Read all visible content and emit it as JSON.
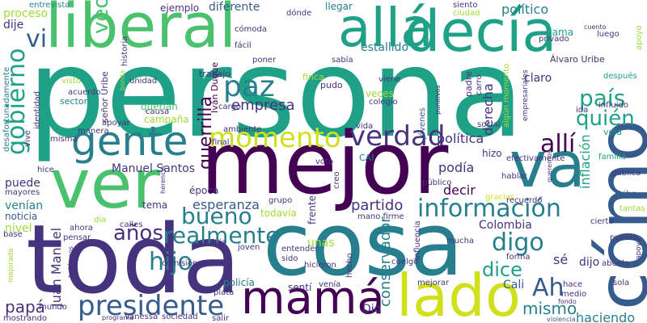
{
  "palette": {
    "purple": "#440154",
    "indigo": "#46337e",
    "blue": "#365c8d",
    "teal": "#277f8e",
    "green": "#1fa187",
    "lime": "#4ac16d",
    "yellow": "#a0da39",
    "bright": "#d0e11c"
  },
  "words": [
    {
      "text": "persona",
      "color": "#1fa187"
    },
    {
      "text": "mejor",
      "color": "#440154"
    },
    {
      "text": "cosa",
      "color": "#277f8e"
    },
    {
      "text": "toda",
      "color": "#46337e"
    },
    {
      "text": "ver",
      "color": "#4ac16d"
    },
    {
      "text": "liberal",
      "color": "#4ac16d"
    },
    {
      "text": "decía",
      "color": "#1fa187"
    },
    {
      "text": "allá",
      "color": "#1fa187"
    },
    {
      "text": "va",
      "color": "#277f8e"
    },
    {
      "text": "cómo",
      "color": "#365c8d"
    },
    {
      "text": "lado",
      "color": "#d0e11c"
    },
    {
      "text": "mamá",
      "color": "#440154"
    },
    {
      "text": "gente",
      "color": "#277f8e"
    },
    {
      "text": "presidente",
      "color": "#365c8d"
    },
    {
      "text": "momento",
      "color": "#d0e11c"
    },
    {
      "text": "verdad",
      "color": "#46337e"
    },
    {
      "text": "paz",
      "color": "#277f8e"
    },
    {
      "text": "bueno",
      "color": "#277f8e"
    },
    {
      "text": "gobierno",
      "color": "#1fa187"
    },
    {
      "text": "información",
      "color": "#277f8e"
    },
    {
      "text": "realmente",
      "color": "#277f8e"
    },
    {
      "text": "años",
      "color": "#46337e"
    },
    {
      "text": "hijo",
      "color": "#277f8e"
    },
    {
      "text": "digo",
      "color": "#277f8e"
    },
    {
      "text": "Ah",
      "color": "#365c8d"
    },
    {
      "text": "allí",
      "color": "#440154"
    },
    {
      "text": "país",
      "color": "#1fa187"
    },
    {
      "text": "quién",
      "color": "#1fa187"
    },
    {
      "text": "vi",
      "color": "#365c8d"
    },
    {
      "text": "veo",
      "color": "#4ac16d"
    },
    {
      "text": "guerrilla",
      "color": "#440154"
    },
    {
      "text": "empresa",
      "color": "#46337e"
    },
    {
      "text": "dice",
      "color": "#1fa187"
    },
    {
      "text": "mismo",
      "color": "#277f8e"
    },
    {
      "text": "papá",
      "color": "#46337e"
    },
    {
      "text": "haciendo",
      "color": "#277f8e"
    },
    {
      "text": "partido",
      "color": "#46337e"
    },
    {
      "text": "esperanza",
      "color": "#365c8d"
    },
    {
      "text": "Juan Manuel",
      "color": "#46337e"
    },
    {
      "text": "conservador",
      "color": "#277f8e"
    },
    {
      "text": "inflación",
      "color": "#1fa187"
    },
    {
      "text": "Manuel Santos",
      "color": "#46337e"
    },
    {
      "text": "política",
      "color": "#46337e"
    },
    {
      "text": "político",
      "color": "#277f8e"
    },
    {
      "text": "derecha",
      "color": "#46337e"
    },
    {
      "text": "podía",
      "color": "#46337e"
    },
    {
      "text": "decir",
      "color": "#440154"
    },
    {
      "text": "Colombia",
      "color": "#46337e"
    },
    {
      "text": "estallido",
      "color": "#277f8e"
    },
    {
      "text": "diferente",
      "color": "#365c8d"
    },
    {
      "text": "proceso",
      "color": "#a0da39"
    },
    {
      "text": "dije",
      "color": "#46337e"
    },
    {
      "text": "puede",
      "color": "#46337e"
    },
    {
      "text": "venían",
      "color": "#277f8e"
    },
    {
      "text": "noticia",
      "color": "#365c8d"
    },
    {
      "text": "nivel",
      "color": "#a0da39"
    },
    {
      "text": "campaña",
      "color": "#a0da39"
    },
    {
      "text": "querían",
      "color": "#4ac16d"
    },
    {
      "text": "veces",
      "color": "#a0da39"
    },
    {
      "text": "sé",
      "color": "#46337e"
    },
    {
      "text": "dijo",
      "color": "#46337e"
    },
    {
      "text": "Cali",
      "color": "#365c8d"
    },
    {
      "text": "tema",
      "color": "#46337e"
    },
    {
      "text": "todavía",
      "color": "#a0da39"
    },
    {
      "text": "policía",
      "color": "#277f8e"
    },
    {
      "text": "claro",
      "color": "#46337e"
    },
    {
      "text": "llegar",
      "color": "#277f8e"
    },
    {
      "text": "ejemplo",
      "color": "#46337e"
    },
    {
      "text": "llama",
      "color": "#1fa187"
    },
    {
      "text": "hizo",
      "color": "#46337e"
    },
    {
      "text": "época",
      "color": "#46337e"
    },
    {
      "text": "unas",
      "color": "#a0da39"
    },
    {
      "text": "grupo",
      "color": "#46337e"
    },
    {
      "text": "frente",
      "color": "#46337e"
    },
    {
      "text": "sentí",
      "color": "#46337e"
    },
    {
      "text": "Iván Duque",
      "color": "#440154"
    },
    {
      "text": "trabajo",
      "color": "#46337e"
    },
    {
      "text": "finca",
      "color": "#a0da39"
    },
    {
      "text": "pudo",
      "color": "#46337e"
    },
    {
      "text": "viene",
      "color": "#46337e"
    },
    {
      "text": "colegio",
      "color": "#46337e"
    },
    {
      "text": "jóvenes",
      "color": "#365c8d"
    },
    {
      "text": "Álvaro Uribe",
      "color": "#46337e"
    },
    {
      "text": "entrevista",
      "color": "#277f8e"
    },
    {
      "text": "después",
      "color": "#1fa187"
    },
    {
      "text": "apoyar",
      "color": "#46337e"
    },
    {
      "text": "mayores",
      "color": "#46337e"
    },
    {
      "text": "hice",
      "color": "#46337e"
    },
    {
      "text": "Dio",
      "color": "#46337e"
    },
    {
      "text": "hija",
      "color": "#46337e"
    },
    {
      "text": "mucha",
      "color": "#46337e"
    },
    {
      "text": "mejorar",
      "color": "#46337e"
    },
    {
      "text": "hablar",
      "color": "#46337e"
    },
    {
      "text": "gracias",
      "color": "#d0e11c"
    },
    {
      "text": "recuerdo",
      "color": "#46337e"
    },
    {
      "text": "mano firme",
      "color": "#46337e"
    },
    {
      "text": "Vanessa",
      "color": "#46337e"
    },
    {
      "text": "sociedad",
      "color": "#46337e"
    },
    {
      "text": "mostrando",
      "color": "#46337e"
    },
    {
      "text": "comisión",
      "color": "#46337e"
    },
    {
      "text": "pensar",
      "color": "#46337e"
    },
    {
      "text": "calles",
      "color": "#46337e"
    },
    {
      "text": "día",
      "color": "#a0da39"
    },
    {
      "text": "ahora",
      "color": "#46337e"
    },
    {
      "text": "familia",
      "color": "#1fa187"
    },
    {
      "text": "veía",
      "color": "#1fa187"
    },
    {
      "text": "pueblo",
      "color": "#46337e"
    },
    {
      "text": "abuelo",
      "color": "#46337e"
    },
    {
      "text": "sola",
      "color": "#46337e"
    },
    {
      "text": "hace",
      "color": "#46337e"
    },
    {
      "text": "medio",
      "color": "#46337e"
    },
    {
      "text": "fondo",
      "color": "#46337e"
    },
    {
      "text": "violencia",
      "color": "#365c8d"
    },
    {
      "text": "Uribe",
      "color": "#365c8d"
    },
    {
      "text": "pública",
      "color": "#46337e"
    },
    {
      "text": "tantas",
      "color": "#a0da39"
    },
    {
      "text": "CAI",
      "color": "#277f8e"
    },
    {
      "text": "final",
      "color": "#46337e"
    },
    {
      "text": "ambiente",
      "color": "#46337e"
    },
    {
      "text": "vida",
      "color": "#46337e"
    },
    {
      "text": "social",
      "color": "#46337e"
    },
    {
      "text": "cargo",
      "color": "#46337e"
    },
    {
      "text": "causa",
      "color": "#46337e"
    },
    {
      "text": "unidad",
      "color": "#46337e"
    },
    {
      "text": "manera",
      "color": "#46337e"
    },
    {
      "text": "misma",
      "color": "#46337e"
    },
    {
      "text": "sector",
      "color": "#277f8e"
    },
    {
      "text": "acuerdo",
      "color": "#46337e"
    },
    {
      "text": "visto",
      "color": "#a0da39"
    },
    {
      "text": "mundo",
      "color": "#46337e"
    },
    {
      "text": "base",
      "color": "#46337e"
    },
    {
      "text": "cómoda",
      "color": "#46337e"
    },
    {
      "text": "fácil",
      "color": "#46337e"
    },
    {
      "text": "poner",
      "color": "#46337e"
    },
    {
      "text": "sabía",
      "color": "#46337e"
    },
    {
      "text": "dónde",
      "color": "#46337e"
    },
    {
      "text": "siento",
      "color": "#46337e"
    },
    {
      "text": "ciudad",
      "color": "#a0da39"
    },
    {
      "text": "privado",
      "color": "#46337e"
    },
    {
      "text": "luego",
      "color": "#46337e"
    },
    {
      "text": "influido",
      "color": "#46337e"
    },
    {
      "text": "cierto",
      "color": "#46337e"
    },
    {
      "text": "plata",
      "color": "#46337e"
    },
    {
      "text": "joven",
      "color": "#46337e"
    },
    {
      "text": "entender",
      "color": "#46337e"
    },
    {
      "text": "sido",
      "color": "#46337e"
    },
    {
      "text": "hicieron",
      "color": "#46337e"
    },
    {
      "text": "cuelgo",
      "color": "#46337e"
    },
    {
      "text": "forma",
      "color": "#46337e"
    },
    {
      "text": "programa",
      "color": "#46337e"
    },
    {
      "text": "salir",
      "color": "#46337e"
    },
    {
      "text": "venía",
      "color": "#46337e"
    },
    {
      "text": "hecho",
      "color": "#46337e"
    },
    {
      "text": "influencia",
      "color": "#46337e"
    },
    {
      "text": "creo",
      "color": "#46337e"
    },
    {
      "text": "voto",
      "color": "#46337e"
    },
    {
      "text": "público",
      "color": "#46337e"
    },
    {
      "text": "efectivamente",
      "color": "#46337e"
    },
    {
      "text": "queremos",
      "color": "#46337e"
    },
    {
      "text": "padre",
      "color": "#46337e"
    },
    {
      "text": "carro",
      "color": "#46337e"
    },
    {
      "text": "algún momento",
      "color": "#a0da39"
    },
    {
      "text": "empresariales",
      "color": "#46337e"
    },
    {
      "text": "ida",
      "color": "#46337e"
    },
    {
      "text": "historia",
      "color": "#46337e"
    },
    {
      "text": "señor Uribe",
      "color": "#46337e"
    },
    {
      "text": "vive",
      "color": "#46337e"
    },
    {
      "text": "identidad",
      "color": "#46337e"
    },
    {
      "text": "desafortunadamente",
      "color": "#277f8e"
    },
    {
      "text": "apoyo",
      "color": "#a0da39"
    },
    {
      "text": "herencia",
      "color": "#46337e"
    },
    {
      "text": "mejorado",
      "color": "#a0da39"
    },
    {
      "text": "apoya",
      "color": "#46337e"
    },
    {
      "text": "habíamos",
      "color": "#46337e"
    },
    {
      "text": "cuento",
      "color": "#46337e"
    },
    {
      "text": "bonita",
      "color": "#a0da39"
    },
    {
      "text": "punitivos",
      "color": "#46337e"
    }
  ]
}
